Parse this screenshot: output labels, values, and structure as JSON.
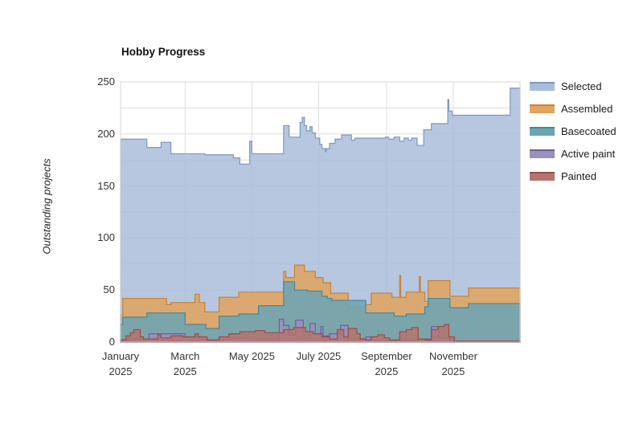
{
  "title": "Hobby Progress",
  "y_axis": {
    "label": "Outstanding projects",
    "ticks": [
      0,
      50,
      100,
      150,
      200,
      250
    ],
    "minor_step": 25
  },
  "x_axis": {
    "ticks": [
      {
        "day": 0,
        "label": "January\n2025"
      },
      {
        "day": 59,
        "label": "March\n2025"
      },
      {
        "day": 120,
        "label": "May 2025"
      },
      {
        "day": 181,
        "label": "July 2025"
      },
      {
        "day": 243,
        "label": "September\n2025"
      },
      {
        "day": 304,
        "label": "November\n2025"
      }
    ]
  },
  "frame_color": "#d4d4d4",
  "gridline_color": "#dcdcdc",
  "chart_data": {
    "type": "area",
    "title": "Hobby Progress",
    "xlabel": "",
    "ylabel": "Outstanding projects",
    "x_unit": "day_of_year_2025",
    "x_range": [
      0,
      365
    ],
    "ylim": [
      0,
      250
    ],
    "grid": true,
    "legend_position": "right",
    "overlap": true,
    "interpolation": "step-after",
    "fill_opacity": 0.85,
    "series": [
      {
        "name": "Selected",
        "fill": "#a9bdd9",
        "stroke": "#7b97c3",
        "points": [
          [
            0,
            195
          ],
          [
            24,
            187
          ],
          [
            37,
            192
          ],
          [
            46,
            181
          ],
          [
            77,
            180
          ],
          [
            103,
            177
          ],
          [
            109,
            171
          ],
          [
            118,
            193
          ],
          [
            120,
            181
          ],
          [
            149,
            208
          ],
          [
            154,
            197
          ],
          [
            164,
            211
          ],
          [
            166,
            216
          ],
          [
            168,
            208
          ],
          [
            170,
            203
          ],
          [
            173,
            207
          ],
          [
            175,
            201
          ],
          [
            178,
            196
          ],
          [
            182,
            190
          ],
          [
            184,
            186
          ],
          [
            187,
            183
          ],
          [
            188,
            186
          ],
          [
            191,
            191
          ],
          [
            196,
            195
          ],
          [
            202,
            199
          ],
          [
            211,
            194
          ],
          [
            214,
            196
          ],
          [
            242,
            197
          ],
          [
            245,
            195
          ],
          [
            250,
            197
          ],
          [
            255,
            193
          ],
          [
            259,
            196
          ],
          [
            263,
            194
          ],
          [
            266,
            196
          ],
          [
            271,
            189
          ],
          [
            277,
            204
          ],
          [
            284,
            210
          ],
          [
            299,
            233
          ],
          [
            300,
            222
          ],
          [
            303,
            218
          ],
          [
            356,
            244
          ],
          [
            365,
            244
          ]
        ]
      },
      {
        "name": "Assembled",
        "fill": "#e1a35e",
        "stroke": "#cc8033",
        "points": [
          [
            0,
            26
          ],
          [
            2,
            42
          ],
          [
            42,
            36
          ],
          [
            46,
            38
          ],
          [
            68,
            46
          ],
          [
            72,
            38
          ],
          [
            77,
            29
          ],
          [
            90,
            43
          ],
          [
            108,
            48
          ],
          [
            149,
            68
          ],
          [
            151,
            62
          ],
          [
            159,
            74
          ],
          [
            168,
            68
          ],
          [
            178,
            62
          ],
          [
            185,
            57
          ],
          [
            192,
            47
          ],
          [
            208,
            34
          ],
          [
            224,
            36
          ],
          [
            229,
            47
          ],
          [
            248,
            43
          ],
          [
            255,
            64
          ],
          [
            256,
            43
          ],
          [
            261,
            48
          ],
          [
            273,
            63
          ],
          [
            274,
            48
          ],
          [
            278,
            39
          ],
          [
            281,
            59
          ],
          [
            301,
            44
          ],
          [
            318,
            52
          ],
          [
            365,
            52
          ]
        ]
      },
      {
        "name": "Basecoated",
        "fill": "#6ba4b5",
        "stroke": "#44879c",
        "points": [
          [
            0,
            17
          ],
          [
            2,
            24
          ],
          [
            24,
            28
          ],
          [
            59,
            17
          ],
          [
            78,
            13
          ],
          [
            90,
            25
          ],
          [
            108,
            27
          ],
          [
            126,
            35
          ],
          [
            149,
            58
          ],
          [
            159,
            50
          ],
          [
            171,
            49
          ],
          [
            184,
            44
          ],
          [
            189,
            42
          ],
          [
            193,
            40
          ],
          [
            224,
            28
          ],
          [
            250,
            25
          ],
          [
            261,
            27
          ],
          [
            278,
            34
          ],
          [
            281,
            42
          ],
          [
            301,
            33
          ],
          [
            318,
            37
          ],
          [
            365,
            37
          ]
        ]
      },
      {
        "name": "Active paint",
        "fill": "#9b8fbc",
        "stroke": "#6d5f9a",
        "points": [
          [
            0,
            2
          ],
          [
            7,
            3
          ],
          [
            26,
            8
          ],
          [
            59,
            5
          ],
          [
            74,
            2
          ],
          [
            90,
            4
          ],
          [
            118,
            3
          ],
          [
            145,
            22
          ],
          [
            149,
            16
          ],
          [
            154,
            7
          ],
          [
            160,
            21
          ],
          [
            167,
            6
          ],
          [
            173,
            18
          ],
          [
            178,
            8
          ],
          [
            183,
            15
          ],
          [
            185,
            6
          ],
          [
            191,
            8
          ],
          [
            201,
            16
          ],
          [
            208,
            3
          ],
          [
            224,
            5
          ],
          [
            229,
            2
          ],
          [
            235,
            1
          ],
          [
            253,
            2
          ],
          [
            272,
            3
          ],
          [
            284,
            15
          ],
          [
            291,
            4
          ],
          [
            301,
            1
          ],
          [
            365,
            1
          ]
        ]
      },
      {
        "name": "Painted",
        "fill": "#b4736e",
        "stroke": "#9d4b43",
        "points": [
          [
            0,
            2
          ],
          [
            5,
            6
          ],
          [
            9,
            9
          ],
          [
            12,
            12
          ],
          [
            18,
            5
          ],
          [
            21,
            3
          ],
          [
            34,
            7
          ],
          [
            37,
            4
          ],
          [
            46,
            6
          ],
          [
            57,
            5
          ],
          [
            68,
            8
          ],
          [
            71,
            5
          ],
          [
            79,
            2
          ],
          [
            90,
            5
          ],
          [
            99,
            8
          ],
          [
            109,
            10
          ],
          [
            123,
            11
          ],
          [
            132,
            9
          ],
          [
            149,
            12
          ],
          [
            158,
            14
          ],
          [
            169,
            10
          ],
          [
            176,
            8
          ],
          [
            184,
            5
          ],
          [
            191,
            3
          ],
          [
            198,
            12
          ],
          [
            204,
            5
          ],
          [
            208,
            13
          ],
          [
            216,
            8
          ],
          [
            219,
            3
          ],
          [
            224,
            2
          ],
          [
            229,
            5
          ],
          [
            235,
            7
          ],
          [
            241,
            4
          ],
          [
            246,
            2
          ],
          [
            255,
            10
          ],
          [
            261,
            12
          ],
          [
            266,
            14
          ],
          [
            272,
            3
          ],
          [
            278,
            2
          ],
          [
            284,
            12
          ],
          [
            290,
            15
          ],
          [
            296,
            17
          ],
          [
            300,
            5
          ],
          [
            305,
            1
          ],
          [
            365,
            1
          ]
        ]
      }
    ]
  }
}
